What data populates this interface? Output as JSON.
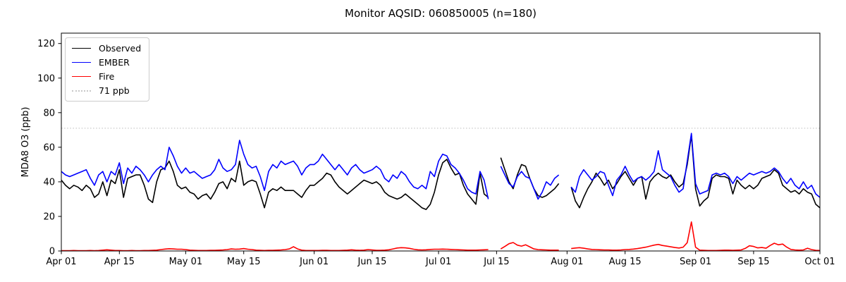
{
  "figure": {
    "title": "Monitor AQSID: 060850005 (n=180)"
  },
  "chart_data": {
    "type": "line",
    "title": "Monitor AQSID: 060850005 (n=180)",
    "xlabel": "",
    "ylabel": "MDA8 O3 (ppb)",
    "ylim": [
      0,
      126
    ],
    "yticks": [
      0,
      20,
      40,
      60,
      80,
      100,
      120
    ],
    "x_unit": "days since Apr 01",
    "n_days": 184,
    "xticks": [
      {
        "day": 0,
        "label": "Apr 01"
      },
      {
        "day": 14,
        "label": "Apr 15"
      },
      {
        "day": 30,
        "label": "May 01"
      },
      {
        "day": 44,
        "label": "May 15"
      },
      {
        "day": 61,
        "label": "Jun 01"
      },
      {
        "day": 75,
        "label": "Jun 15"
      },
      {
        "day": 91,
        "label": "Jul 01"
      },
      {
        "day": 105,
        "label": "Jul 15"
      },
      {
        "day": 122,
        "label": "Aug 01"
      },
      {
        "day": 136,
        "label": "Aug 15"
      },
      {
        "day": 153,
        "label": "Sep 01"
      },
      {
        "day": 167,
        "label": "Sep 15"
      },
      {
        "day": 183,
        "label": "Oct 01"
      }
    ],
    "grid": false,
    "legend_position": "upper left",
    "threshold": {
      "label": "71 ppb",
      "value": 71,
      "color": "#c8c8c8",
      "style": "dotted"
    },
    "series": [
      {
        "name": "Observed",
        "color": "#000000",
        "values": [
          41,
          38,
          36,
          38,
          37,
          35,
          38,
          36,
          31,
          33,
          40,
          32,
          41,
          39,
          47,
          31,
          42,
          43,
          44,
          44,
          38,
          30,
          28,
          40,
          47,
          48,
          52,
          46,
          38,
          36,
          37,
          34,
          33,
          30,
          32,
          33,
          30,
          34,
          39,
          40,
          36,
          42,
          40,
          52,
          38,
          40,
          41,
          40,
          33,
          25,
          34,
          36,
          35,
          37,
          35,
          35,
          35,
          33,
          31,
          35,
          38,
          38,
          40,
          42,
          45,
          44,
          40,
          37,
          35,
          33,
          35,
          37,
          39,
          41,
          40,
          39,
          40,
          38,
          34,
          32,
          31,
          30,
          31,
          33,
          31,
          29,
          27,
          25,
          24,
          27,
          34,
          44,
          51,
          53,
          48,
          44,
          45,
          38,
          33,
          30,
          27,
          45,
          33,
          31,
          null,
          null,
          54,
          47,
          40,
          36,
          44,
          50,
          49,
          42,
          36,
          32,
          31,
          32,
          34,
          36,
          39,
          null,
          null,
          37,
          29,
          25,
          31,
          36,
          40,
          45,
          42,
          38,
          41,
          36,
          39,
          43,
          46,
          42,
          38,
          42,
          43,
          30,
          40,
          43,
          45,
          43,
          42,
          44,
          40,
          37,
          39,
          50,
          67,
          36,
          26,
          29,
          31,
          42,
          44,
          43,
          43,
          42,
          33,
          41,
          38,
          36,
          38,
          36,
          38,
          42,
          43,
          44,
          47,
          45,
          38,
          36,
          34,
          35,
          33,
          36,
          34,
          33,
          27,
          25
        ]
      },
      {
        "name": "EMBER",
        "color": "#0000ff",
        "values": [
          46,
          44,
          43,
          44,
          45,
          46,
          47,
          42,
          38,
          44,
          46,
          40,
          46,
          44,
          51,
          39,
          48,
          45,
          49,
          47,
          44,
          40,
          44,
          47,
          49,
          47,
          60,
          55,
          49,
          45,
          48,
          45,
          46,
          44,
          42,
          43,
          44,
          47,
          53,
          48,
          46,
          47,
          50,
          64,
          56,
          50,
          48,
          49,
          43,
          35,
          46,
          50,
          48,
          52,
          50,
          51,
          52,
          49,
          44,
          48,
          50,
          50,
          52,
          56,
          53,
          50,
          47,
          50,
          47,
          44,
          48,
          50,
          47,
          45,
          46,
          47,
          49,
          47,
          42,
          40,
          44,
          42,
          46,
          44,
          40,
          37,
          36,
          38,
          36,
          46,
          43,
          52,
          56,
          55,
          50,
          48,
          45,
          41,
          36,
          34,
          33,
          46,
          41,
          30,
          null,
          null,
          49,
          44,
          39,
          37,
          43,
          46,
          43,
          42,
          36,
          30,
          34,
          40,
          38,
          42,
          44,
          null,
          null,
          37,
          34,
          43,
          47,
          44,
          41,
          43,
          46,
          45,
          38,
          32,
          41,
          44,
          49,
          44,
          40,
          42,
          43,
          41,
          43,
          46,
          58,
          47,
          45,
          43,
          38,
          34,
          36,
          52,
          68,
          39,
          33,
          34,
          35,
          44,
          45,
          44,
          45,
          43,
          39,
          43,
          41,
          43,
          45,
          44,
          45,
          46,
          45,
          46,
          48,
          46,
          42,
          39,
          42,
          38,
          36,
          40,
          36,
          38,
          33,
          31
        ]
      },
      {
        "name": "Fire",
        "color": "#ff0000",
        "values": [
          0.2,
          0.2,
          0.2,
          0.3,
          0.2,
          0.2,
          0.2,
          0.3,
          0.2,
          0.3,
          0.5,
          0.7,
          0.5,
          0.3,
          0.3,
          0.2,
          0.2,
          0.3,
          0.2,
          0.2,
          0.3,
          0.3,
          0.4,
          0.5,
          0.8,
          1.1,
          1.3,
          1.2,
          1,
          1,
          0.8,
          0.5,
          0.4,
          0.3,
          0.3,
          0.3,
          0.4,
          0.4,
          0.5,
          0.6,
          0.8,
          1.2,
          1,
          1.1,
          1.4,
          1,
          0.8,
          0.5,
          0.4,
          0.3,
          0.4,
          0.4,
          0.5,
          0.6,
          0.8,
          1.2,
          2.5,
          1.2,
          0.5,
          0.3,
          0.3,
          0.3,
          0.3,
          0.4,
          0.4,
          0.3,
          0.3,
          0.3,
          0.4,
          0.5,
          0.7,
          0.5,
          0.4,
          0.5,
          0.8,
          0.6,
          0.4,
          0.4,
          0.5,
          0.7,
          1.2,
          1.7,
          1.9,
          1.8,
          1.5,
          1,
          0.7,
          0.6,
          0.7,
          0.9,
          1,
          1,
          1.1,
          1,
          0.9,
          0.8,
          0.7,
          0.6,
          0.5,
          0.5,
          0.5,
          0.6,
          0.7,
          0.8,
          null,
          null,
          1.2,
          2.6,
          4.2,
          4.9,
          3.4,
          2.8,
          3.6,
          2.4,
          1.2,
          0.8,
          0.7,
          0.6,
          0.5,
          0.5,
          0.5,
          null,
          null,
          1.4,
          1.7,
          1.9,
          1.6,
          1.2,
          0.9,
          0.8,
          0.7,
          0.6,
          0.6,
          0.5,
          0.5,
          0.6,
          0.8,
          0.9,
          1.1,
          1.4,
          1.8,
          2.2,
          2.8,
          3.4,
          3.8,
          3.2,
          2.8,
          2.4,
          2,
          1.7,
          2.2,
          4.8,
          16.8,
          2.2,
          0.5,
          0.4,
          0.3,
          0.3,
          0.3,
          0.4,
          0.5,
          0.5,
          0.4,
          0.5,
          0.6,
          1.5,
          3,
          2.6,
          1.8,
          2,
          1.6,
          3.2,
          4.5,
          3.6,
          4,
          2.2,
          0.9,
          0.6,
          0.5,
          0.6,
          1.6,
          0.8,
          0.4,
          0.3
        ]
      }
    ],
    "legend": [
      "Observed",
      "EMBER",
      "Fire",
      "71 ppb"
    ]
  }
}
